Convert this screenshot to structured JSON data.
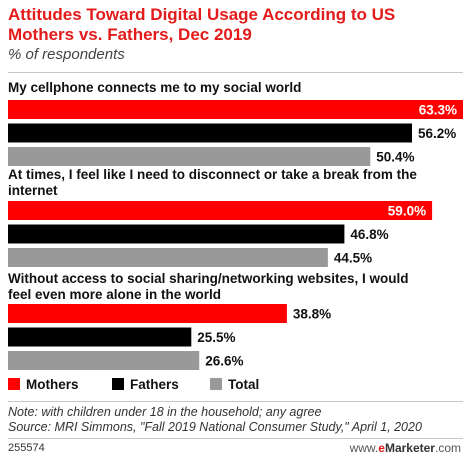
{
  "header": {
    "title": "Attitudes Toward Digital Usage According to US Mothers vs. Fathers, Dec 2019",
    "subtitle": "% of respondents"
  },
  "legend": [
    {
      "label": "Mothers",
      "color": "#ff0000"
    },
    {
      "label": "Fathers",
      "color": "#000000"
    },
    {
      "label": "Total",
      "color": "#999999"
    }
  ],
  "chart_data": {
    "type": "bar",
    "orientation": "horizontal",
    "categories": [
      "My cellphone connects me to my social world",
      "At times, I feel like I need to disconnect or take a break from the internet",
      "Without access to social sharing/networking websites, I would feel even more alone in the world"
    ],
    "series": [
      {
        "name": "Mothers",
        "color": "#ff0000",
        "values": [
          63.3,
          59.0,
          38.8
        ],
        "labels": [
          "63.3%",
          "59.0%",
          "38.8%"
        ]
      },
      {
        "name": "Fathers",
        "color": "#000000",
        "values": [
          56.2,
          46.8,
          25.5
        ],
        "labels": [
          "56.2%",
          "46.8%",
          "25.5%"
        ]
      },
      {
        "name": "Total",
        "color": "#999999",
        "values": [
          50.4,
          44.5,
          26.6
        ],
        "labels": [
          "50.4%",
          "44.5%",
          "26.6%"
        ]
      }
    ],
    "title": "Attitudes Toward Digital Usage According to US Mothers vs. Fathers, Dec 2019",
    "subtitle": "% of respondents",
    "xlim": [
      0,
      63.3
    ],
    "grid": false,
    "legend_position": "bottom"
  },
  "footer": {
    "note": "Note: with children under 18 in the household; any agree",
    "source": "Source: MRI Simmons, \"Fall 2019 National Consumer Study,\" April 1, 2020",
    "code": "255574",
    "brand_www": "www.",
    "brand_e": "e",
    "brand_marketer": "Marketer",
    "brand_com": ".com"
  }
}
